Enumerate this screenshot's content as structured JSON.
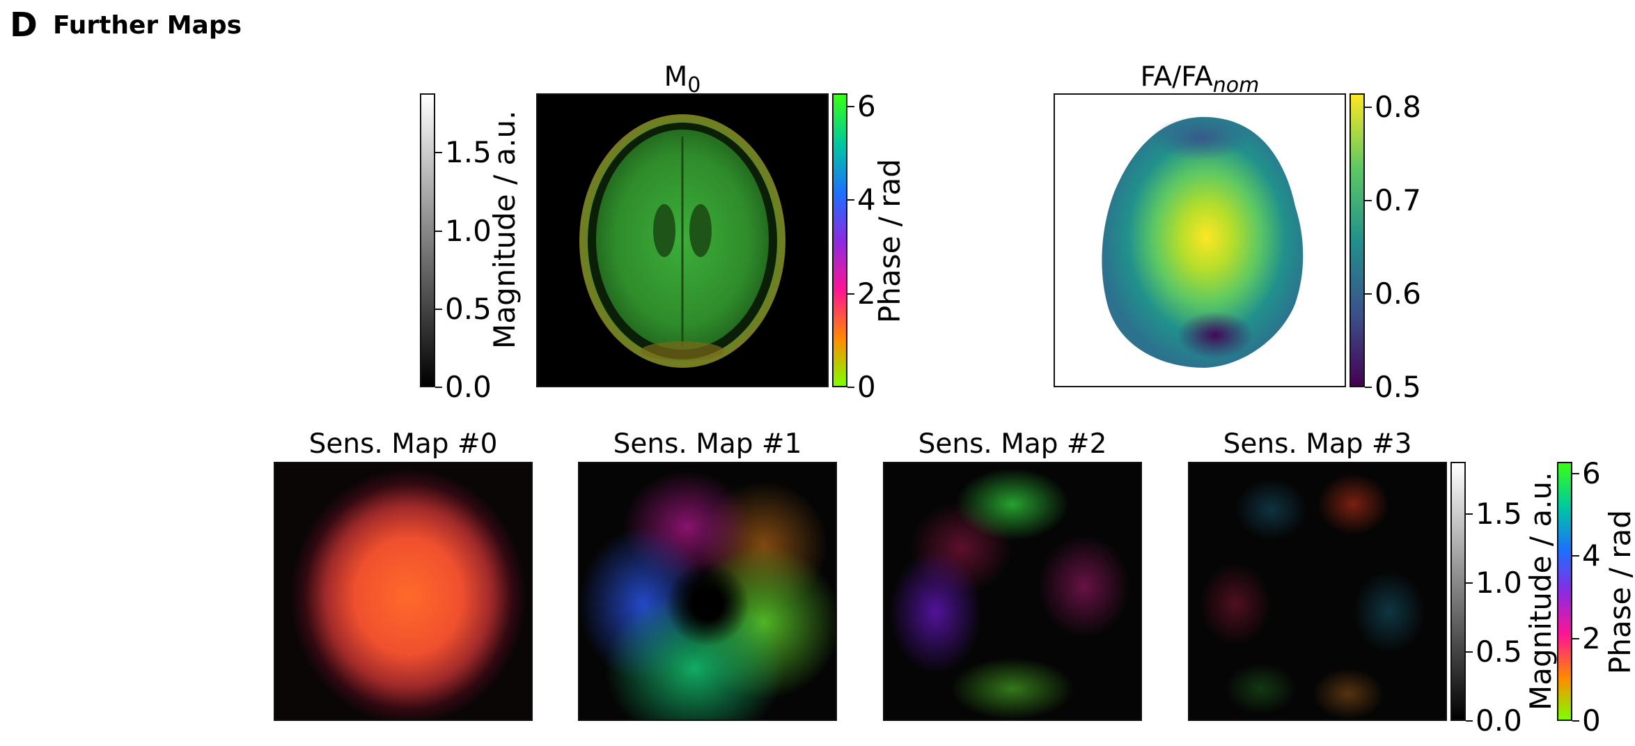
{
  "panel": {
    "letter": "D",
    "title": "Further Maps"
  },
  "m0": {
    "title_main": "M",
    "title_sub": "0",
    "magnitude_colorbar": {
      "label": "Magnitude / a.u.",
      "ticks": [
        "0.0",
        "0.5",
        "1.0",
        "1.5"
      ],
      "values": [
        0.0,
        0.5,
        1.0,
        1.5
      ],
      "range": [
        0.0,
        1.88
      ]
    },
    "phase_colorbar": {
      "label": "Phase / rad",
      "ticks": [
        "0",
        "2",
        "4",
        "6"
      ],
      "values": [
        0,
        2,
        4,
        6
      ],
      "range": [
        0,
        6.28
      ]
    }
  },
  "fa": {
    "title_main": "FA/FA",
    "title_sub": "nom",
    "colorbar": {
      "ticks": [
        "0.5",
        "0.6",
        "0.7",
        "0.8"
      ],
      "values": [
        0.5,
        0.6,
        0.7,
        0.8
      ],
      "range": [
        0.5,
        0.815
      ]
    }
  },
  "sens_maps": {
    "titles": [
      "Sens. Map #0",
      "Sens. Map #1",
      "Sens. Map #2",
      "Sens. Map #3"
    ],
    "magnitude_colorbar": {
      "label": "Magnitude / a.u.",
      "ticks": [
        "0.0",
        "0.5",
        "1.0",
        "1.5"
      ],
      "values": [
        0.0,
        0.5,
        1.0,
        1.5
      ],
      "range": [
        0.0,
        1.88
      ]
    },
    "phase_colorbar": {
      "label": "Phase / rad",
      "ticks": [
        "0",
        "2",
        "4",
        "6"
      ],
      "values": [
        0,
        2,
        4,
        6
      ],
      "range": [
        0,
        6.28
      ]
    }
  },
  "colors": {
    "phase_gradient": [
      "#7fff00",
      "#ff8c00",
      "#ff1493",
      "#8a2be2",
      "#1e6fff",
      "#00c8a0",
      "#39ff14"
    ],
    "viridis": [
      "#440154",
      "#3b528b",
      "#21918c",
      "#5ec962",
      "#fde725"
    ]
  }
}
